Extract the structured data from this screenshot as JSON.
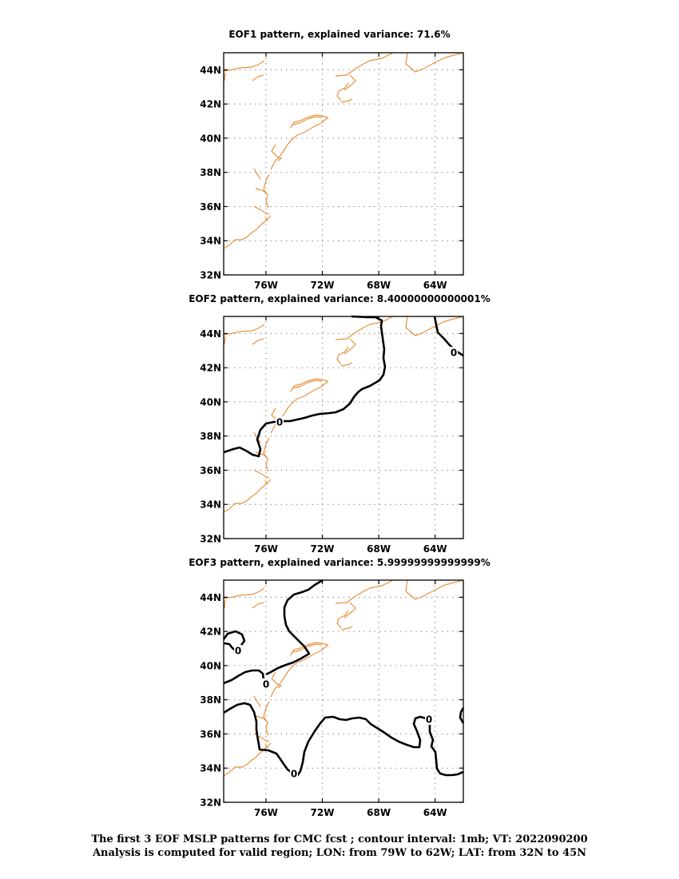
{
  "panels": [
    {
      "title": "EOF1 pattern, explained variance: 71.6%"
    },
    {
      "title": "EOF2 pattern, explained variance: 8.40000000000001%"
    },
    {
      "title": "EOF3 pattern, explained variance: 5.99999999999999%"
    }
  ],
  "lat_ticks": [
    "32N",
    "34N",
    "36N",
    "38N",
    "40N",
    "42N",
    "44N"
  ],
  "lon_ticks": [
    "76W",
    "72W",
    "68W",
    "64W"
  ],
  "contour_label": "0",
  "colors": {
    "coastline": "#e8913c",
    "contour": "#000000",
    "grid": "#888888"
  },
  "footer": {
    "line1": "The first 3 EOF MSLP patterns for CMC fcst ; contour interval: 1mb; VT: 2022090200",
    "line2": "Analysis is computed for valid region; LON: from 79W to 62W; LAT: from 32N to 45N"
  }
}
